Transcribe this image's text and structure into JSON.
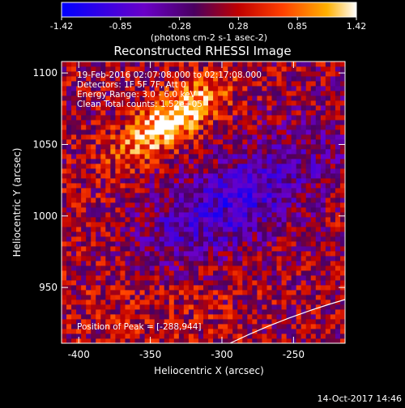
{
  "chart_data": {
    "type": "heatmap",
    "title": "Reconstructed RHESSI Image",
    "xlabel": "Heliocentric X (arcsec)",
    "ylabel": "Heliocentric Y (arcsec)",
    "xlim": [
      -412,
      -214
    ],
    "ylim": [
      911,
      1108
    ],
    "x_ticks": [
      -400,
      -350,
      -300,
      -250
    ],
    "y_ticks": [
      950,
      1000,
      1050,
      1100
    ],
    "colorbar": {
      "min": -1.42,
      "max": 1.42,
      "ticks": [
        "-1.42",
        "-0.85",
        "-0.28",
        "0.28",
        "0.85",
        "1.42"
      ],
      "units": "(photons cm-2 s-1 asec-2)",
      "colors": [
        "#0000ff",
        "#6a00c8",
        "#4a0060",
        "#c00000",
        "#ff4000",
        "#ffb000",
        "#ffffff"
      ]
    },
    "annotations": [
      "19-Feb-2016 02:07:08.000 to 02:17:08.000",
      "Detectors: 1F 5F 7F, Att 0",
      "Energy Range: 3.0 - 6.0 keV",
      "Clean    Total counts: 1.52e+05"
    ],
    "peak_label": "Position of Peak = [-288,944]",
    "peak": [
      -288,
      944
    ],
    "grid": false,
    "features": [
      {
        "kind": "bright_source",
        "x": -335,
        "y": 1068,
        "value": 1.35
      },
      {
        "kind": "negative_trough",
        "x": -300,
        "y": 1005,
        "value": -0.9
      }
    ]
  },
  "footer": {
    "timestamp": "14-Oct-2017 14:46"
  }
}
